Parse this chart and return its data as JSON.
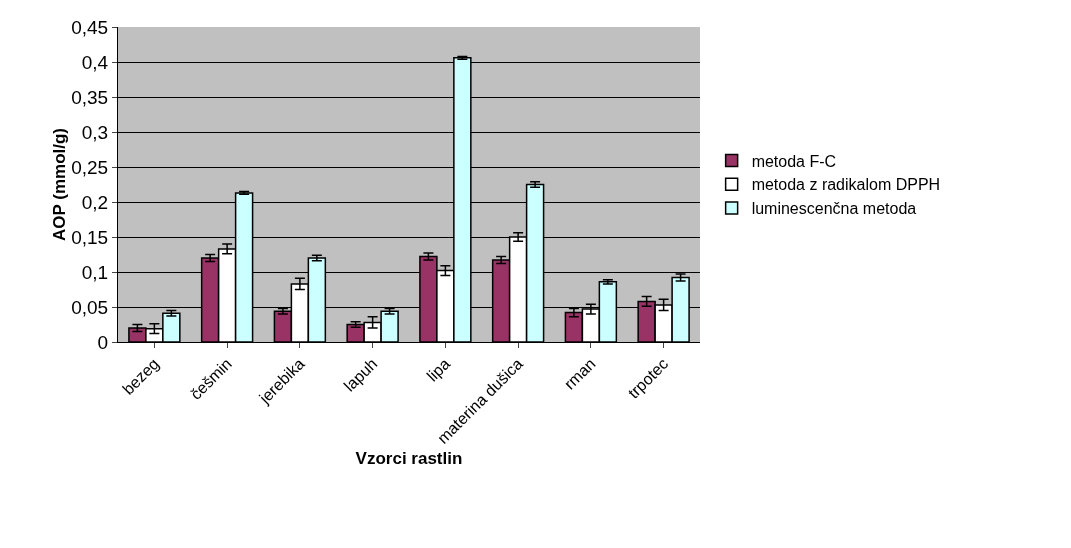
{
  "chart_data": {
    "type": "bar",
    "xlabel": "Vzorci rastlin",
    "ylabel": "AOP (mmol/g)",
    "categories": [
      "bezeg",
      "češmin",
      "jerebika",
      "lapuh",
      "lipa",
      "materina dušica",
      "rman",
      "trpotec"
    ],
    "series": [
      {
        "name": "metoda F-C",
        "color": "#993366",
        "values": [
          0.02,
          0.12,
          0.044,
          0.025,
          0.122,
          0.117,
          0.042,
          0.058
        ],
        "errors": [
          0.005,
          0.005,
          0.004,
          0.004,
          0.005,
          0.005,
          0.006,
          0.007
        ]
      },
      {
        "name": "metoda z radikalom DPPH",
        "color": "#ffffff",
        "values": [
          0.019,
          0.133,
          0.083,
          0.028,
          0.102,
          0.15,
          0.047,
          0.053
        ],
        "errors": [
          0.007,
          0.007,
          0.008,
          0.008,
          0.007,
          0.006,
          0.007,
          0.008
        ]
      },
      {
        "name": "luminescenčna metoda",
        "color": "#ccffff",
        "values": [
          0.041,
          0.213,
          0.12,
          0.044,
          0.406,
          0.225,
          0.086,
          0.092
        ],
        "errors": [
          0.004,
          0.002,
          0.004,
          0.004,
          0.002,
          0.004,
          0.003,
          0.005
        ]
      }
    ],
    "ylim": [
      0,
      0.45
    ],
    "yticks": [
      0,
      {
        "value": 0.05,
        "label": "0,05"
      },
      {
        "value": 0.1,
        "label": "0,1"
      },
      {
        "value": 0.15,
        "label": "0,15"
      },
      {
        "value": 0.2,
        "label": "0,2"
      },
      {
        "value": 0.25,
        "label": "0,25"
      },
      {
        "value": 0.3,
        "label": "0,3"
      },
      {
        "value": 0.35,
        "label": "0,35"
      },
      {
        "value": 0.4,
        "label": "0,4"
      },
      {
        "value": 0.45,
        "label": "0,45"
      }
    ],
    "grid": "y",
    "legend": "right"
  }
}
